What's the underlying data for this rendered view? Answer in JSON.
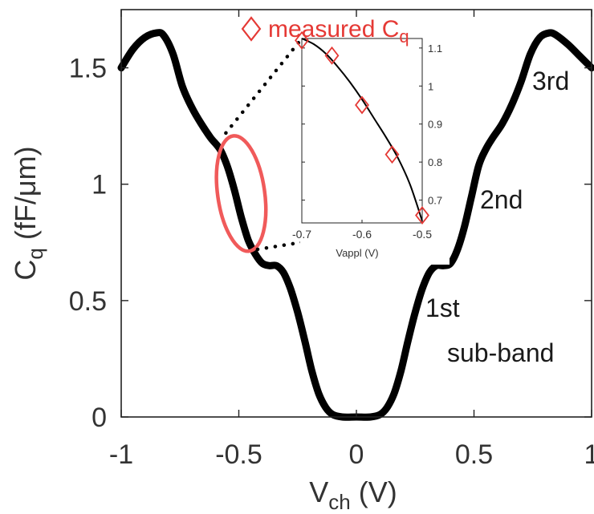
{
  "chart_data": [
    {
      "type": "line",
      "xlabel": {
        "main": "V",
        "sub": "ch",
        "unit": " (V)"
      },
      "ylabel": {
        "main": "C",
        "sub": "q",
        "unit": " (fF/μm)"
      },
      "xlim": [
        -1,
        1
      ],
      "ylim": [
        0,
        1.75
      ],
      "xticks": [
        "-1",
        "-0.5",
        "0",
        "0.5",
        "1"
      ],
      "yticks": [
        "0",
        "0.5",
        "1",
        "1.5"
      ],
      "xtick_values": [
        -1,
        -0.5,
        0,
        0.5,
        1
      ],
      "ytick_values": [
        0,
        0.5,
        1,
        1.5
      ],
      "series": [
        {
          "x": [
            -1,
            -0.95,
            -0.9,
            -0.85,
            -0.82,
            -0.78,
            -0.74,
            -0.7,
            -0.66,
            -0.62,
            -0.58,
            -0.55,
            -0.52,
            -0.49,
            -0.46,
            -0.43,
            -0.4,
            -0.37,
            -0.34,
            -0.31,
            -0.28,
            -0.25,
            -0.22,
            -0.19,
            -0.16,
            -0.13,
            -0.1,
            -0.06,
            0,
            0.06,
            0.1,
            0.13,
            0.16,
            0.19,
            0.22,
            0.25,
            0.28,
            0.31,
            0.34,
            0.37,
            0.4,
            0.43,
            0.46,
            0.49,
            0.52,
            0.55,
            0.58,
            0.62,
            0.66,
            0.7,
            0.74,
            0.78,
            0.82,
            0.85,
            0.9,
            0.95,
            1
          ],
          "y": [
            1.5,
            1.58,
            1.63,
            1.65,
            1.64,
            1.56,
            1.42,
            1.33,
            1.26,
            1.2,
            1.15,
            1.08,
            0.98,
            0.86,
            0.76,
            0.7,
            0.66,
            0.65,
            0.65,
            0.62,
            0.55,
            0.45,
            0.33,
            0.2,
            0.1,
            0.04,
            0.01,
            0,
            0,
            0,
            0.01,
            0.04,
            0.1,
            0.2,
            0.33,
            0.45,
            0.55,
            0.62,
            0.65,
            0.65,
            0.66,
            0.72,
            0.82,
            0.95,
            1.08,
            1.15,
            1.2,
            1.26,
            1.34,
            1.44,
            1.56,
            1.63,
            1.65,
            1.64,
            1.6,
            1.55,
            1.5
          ]
        }
      ],
      "annotations": [
        "3rd",
        "2nd",
        "1st",
        "sub-band"
      ],
      "highlight": {
        "shape": "ellipse",
        "color": "#f05a5a",
        "center": [
          -0.49,
          0.96
        ],
        "semi_axes": [
          0.1,
          0.25
        ],
        "rotation_deg": -8
      },
      "connector_lines": [
        {
          "from": [
            -0.555,
            1.22
          ],
          "to": [
            -0.21,
            1.625
          ],
          "to_inset": [
            -0.7,
            1.125
          ]
        },
        {
          "from": [
            -0.42,
            0.72
          ],
          "to": [
            -0.34,
            0.8
          ],
          "to_inset": [
            -0.5,
            0.64
          ]
        }
      ],
      "legend": {
        "label": "measured C",
        "sub": "q",
        "marker": "diamond",
        "color": "#e53935",
        "placement": "top"
      },
      "colors": {
        "line": "#000000",
        "accent": "#f05a5a"
      }
    },
    {
      "type": "scatter",
      "xlabel": "Vappl (V)",
      "xlim": [
        -0.7,
        -0.5
      ],
      "ylim": [
        0.64,
        1.125
      ],
      "xticks": [
        "-0.7",
        "-0.6",
        "-0.5"
      ],
      "yticks": [
        "0.7",
        "0.8",
        "0.9",
        "1",
        "1.1"
      ],
      "xtick_values": [
        -0.7,
        -0.6,
        -0.5
      ],
      "ytick_values": [
        0.7,
        0.8,
        0.9,
        1,
        1.1
      ],
      "series": [
        {
          "label": "measured C",
          "marker": "diamond",
          "color": "#e53935",
          "x": [
            -0.7,
            -0.65,
            -0.6,
            -0.55,
            -0.5
          ],
          "y": [
            1.12,
            1.08,
            0.95,
            0.82,
            0.66
          ]
        },
        {
          "style": "line",
          "color": "#000000",
          "x": [
            -0.7,
            -0.68,
            -0.66,
            -0.64,
            -0.62,
            -0.6,
            -0.58,
            -0.56,
            -0.54,
            -0.52,
            -0.5
          ],
          "y": [
            1.125,
            1.11,
            1.085,
            1.05,
            1.01,
            0.965,
            0.915,
            0.865,
            0.81,
            0.74,
            0.645
          ]
        }
      ]
    }
  ]
}
